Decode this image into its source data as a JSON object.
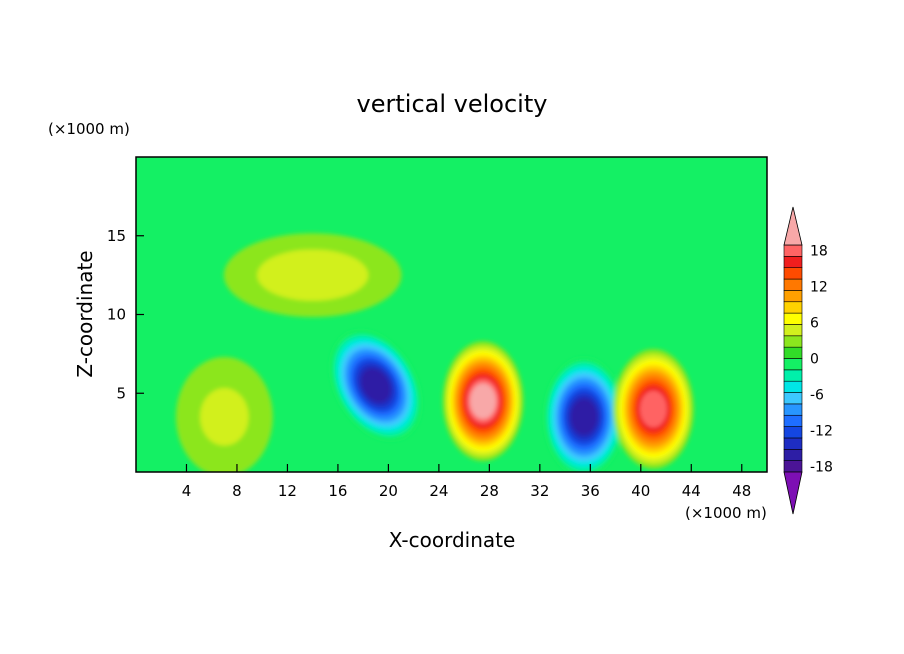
{
  "chart_data": {
    "type": "heatmap",
    "title": "vertical velocity",
    "xlabel": "X-coordinate",
    "ylabel": "Z-coordinate",
    "x_unit": "(×1000 m)",
    "y_unit": "(×1000 m)",
    "xlim": [
      0,
      50
    ],
    "ylim": [
      0,
      20
    ],
    "x_ticks": [
      4,
      8,
      12,
      16,
      20,
      24,
      28,
      32,
      36,
      40,
      44,
      48
    ],
    "y_ticks": [
      5,
      10,
      15
    ],
    "colorbar": {
      "tick_labels": [
        18,
        12,
        6,
        0,
        -6,
        -12,
        -18
      ],
      "levels": [
        -20,
        -18,
        -16,
        -14,
        -12,
        -10,
        -8,
        -6,
        -4,
        -2,
        0,
        2,
        4,
        6,
        8,
        10,
        12,
        14,
        16,
        18,
        20
      ],
      "colors": [
        "#7d0fb4",
        "#4b1496",
        "#2d1ea5",
        "#1e2dc3",
        "#1446e1",
        "#1e6eff",
        "#2896ff",
        "#3cc8ff",
        "#00e6e6",
        "#00f0aa",
        "#14f064",
        "#32dc28",
        "#8ce61e",
        "#d2f01e",
        "#ffff00",
        "#ffd200",
        "#ffa000",
        "#ff7800",
        "#ff4b00",
        "#f01e1e",
        "#ff6464",
        "#f8a8a8"
      ],
      "extend": "both"
    },
    "features": [
      {
        "kind": "downdraft",
        "x": 19,
        "z": 5.5,
        "peak": -18
      },
      {
        "kind": "updraft",
        "x": 27.5,
        "z": 4.5,
        "peak": 20
      },
      {
        "kind": "downdraft",
        "x": 35.5,
        "z": 3.5,
        "peak": -18
      },
      {
        "kind": "updraft",
        "x": 41,
        "z": 4,
        "peak": 18
      },
      {
        "kind": "updraft",
        "x": 7,
        "z": 3.5,
        "peak": 5
      },
      {
        "kind": "weak updraft",
        "x": 14,
        "z": 12.5,
        "peak": 4
      }
    ]
  }
}
